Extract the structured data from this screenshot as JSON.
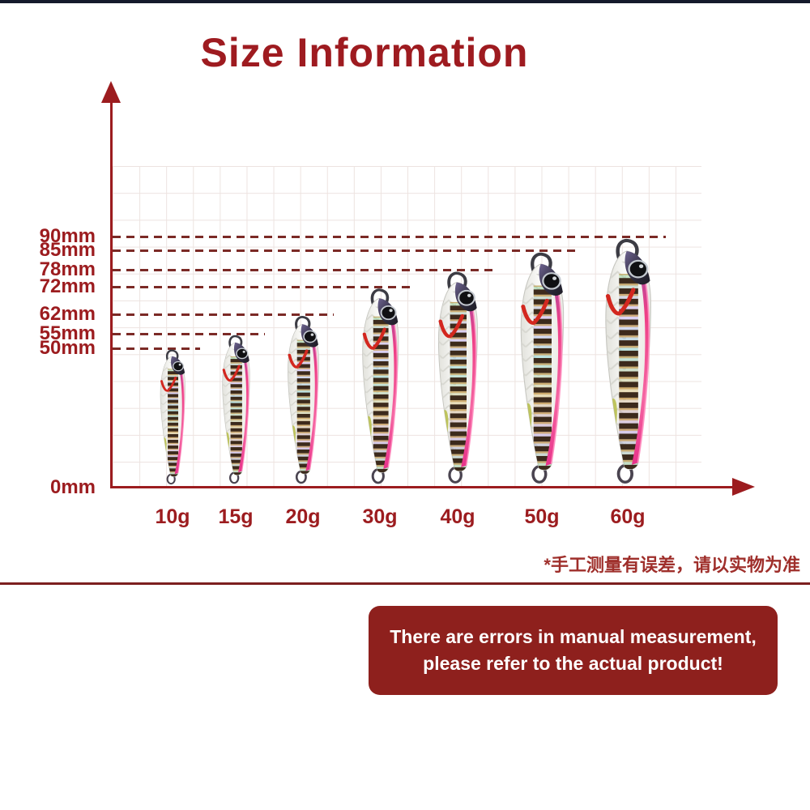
{
  "page": {
    "title": "Size Information"
  },
  "chart_data": {
    "type": "bar",
    "title": "Size Information",
    "categories": [
      "10g",
      "15g",
      "20g",
      "30g",
      "40g",
      "50g",
      "60g"
    ],
    "values": [
      50,
      55,
      62,
      72,
      78,
      85,
      90
    ],
    "unit": "mm",
    "y_ticks": [
      {
        "label": "90mm",
        "mm": 90
      },
      {
        "label": "85mm",
        "mm": 85
      },
      {
        "label": "78mm",
        "mm": 78
      },
      {
        "label": "72mm",
        "mm": 72
      },
      {
        "label": "62mm",
        "mm": 62
      },
      {
        "label": "55mm",
        "mm": 55
      },
      {
        "label": "50mm",
        "mm": 50
      }
    ],
    "origin_tick": "0mm",
    "ylim": [
      0,
      100
    ],
    "grid": true,
    "legend": false,
    "items": [
      {
        "weight": "10g",
        "length": "50mm"
      },
      {
        "weight": "15g",
        "length": "55mm"
      },
      {
        "weight": "20g",
        "length": "62mm"
      },
      {
        "weight": "30g",
        "length": "72mm"
      },
      {
        "weight": "40g",
        "length": "78mm"
      },
      {
        "weight": "50g",
        "length": "85mm"
      },
      {
        "weight": "60g",
        "length": "90mm"
      }
    ]
  },
  "footnote": "*手工测量有误差，请以实物为准",
  "notice": {
    "line1": "There are errors in manual measurement,",
    "line2": "please refer to the actual product!"
  },
  "colors": {
    "accent": "#9e1b20",
    "dash_line": "#7b2a26",
    "grid_line": "#ede3e0",
    "notice_bg": "#8e201d",
    "notice_text": "#ffffff",
    "lure_pink": "#ee3f86",
    "lure_stripe_dark": "#3c2a1c",
    "lure_green": "#b9c04f",
    "top_border": "#141a2b"
  }
}
